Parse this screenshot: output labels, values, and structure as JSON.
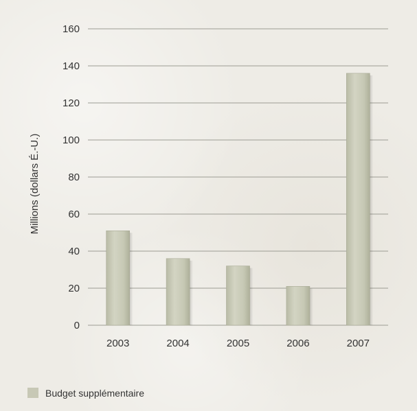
{
  "chart_data": {
    "type": "bar",
    "categories": [
      "2003",
      "2004",
      "2005",
      "2006",
      "2007"
    ],
    "series": [
      {
        "name": "Budget supplémentaire",
        "values": [
          51,
          36,
          32,
          21,
          136
        ]
      }
    ],
    "ylabel": "Millions (dollars É.-U.)",
    "xlabel": "",
    "ylim": [
      0,
      160
    ],
    "yticks": [
      0,
      20,
      40,
      60,
      80,
      100,
      120,
      140,
      160
    ],
    "grid": true,
    "legend_position": "bottom-left",
    "colors": {
      "bar_fill": "#c7c8b5",
      "bar_stroke": "#a8aa95",
      "gridline": "#9c9c93",
      "background": "#eeece6",
      "text": "#333333"
    }
  }
}
